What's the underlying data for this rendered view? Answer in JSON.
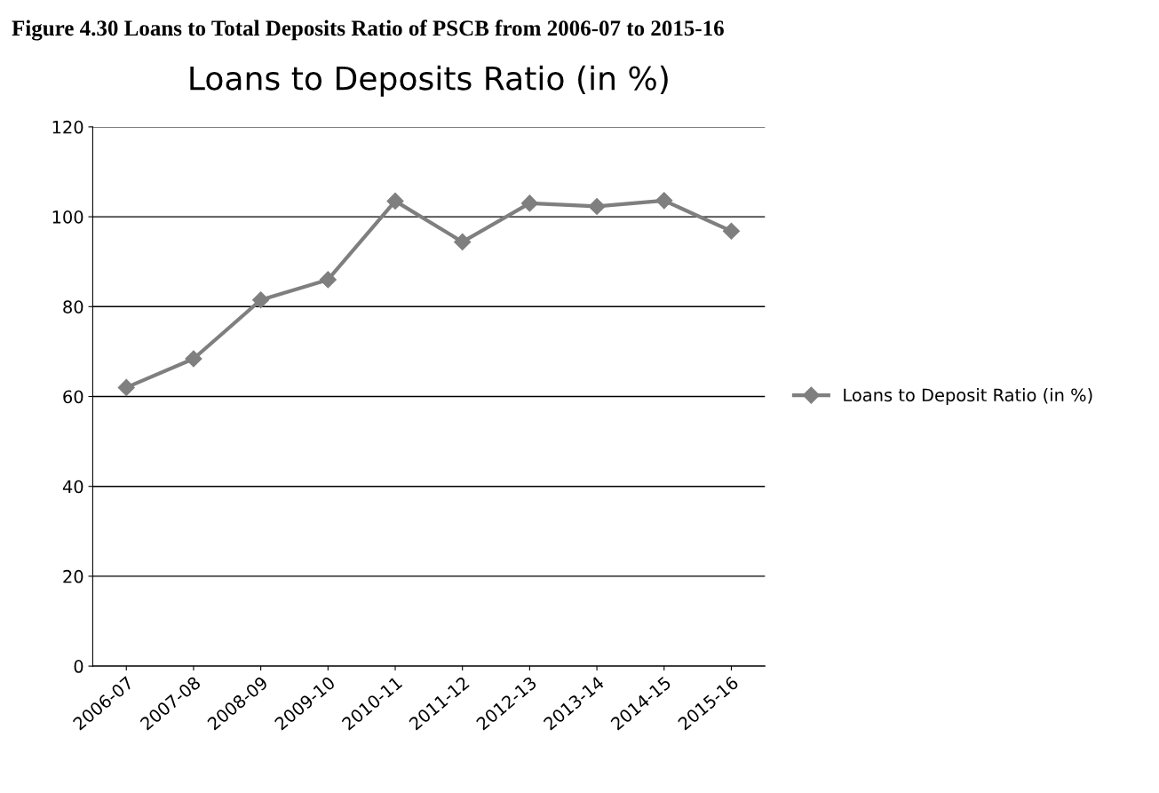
{
  "chart_data": {
    "type": "line",
    "title": "Loans to Deposits Ratio (in %)",
    "annotations": [
      "Figure 4.30 Loans to Total Deposits Ratio of PSCB from 2006-07 to 2015-16"
    ],
    "categories": [
      "2006-07",
      "2007-08",
      "2008-09",
      "2009-10",
      "2010-11",
      "2011-12",
      "2012-13",
      "2013-14",
      "2014-15",
      "2015-16"
    ],
    "series": [
      {
        "name": "Loans to Deposit Ratio (in %)",
        "color": "#7f7f7f",
        "values": [
          62,
          68.4,
          81.5,
          86,
          103.5,
          94.4,
          103,
          102.3,
          103.6,
          96.8
        ]
      }
    ],
    "ylim": [
      0,
      120
    ],
    "yticks": [
      0,
      20,
      40,
      60,
      80,
      100,
      120
    ],
    "grid": "y",
    "legend": "right",
    "marker": "diamond",
    "line_style": "solid"
  }
}
